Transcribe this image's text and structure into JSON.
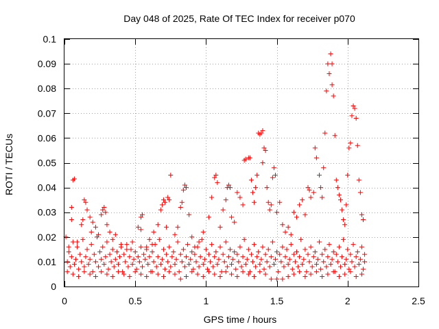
{
  "chart_data": {
    "type": "scatter",
    "title": "Day 048 of 2025, Rate Of TEC Index for receiver p070",
    "xlabel": "GPS time / hours",
    "ylabel": "ROTI / TECUs",
    "xlim": [
      0,
      2.5
    ],
    "ylim": [
      0,
      0.1
    ],
    "xticks": [
      "0",
      "0.5",
      "1",
      "1.5",
      "2",
      "2.5"
    ],
    "yticks": [
      "0",
      "0.01",
      "0.02",
      "0.03",
      "0.04",
      "0.05",
      "0.06",
      "0.07",
      "0.08",
      "0.09",
      "0.1"
    ],
    "grid": true,
    "marker": "+",
    "color": "#ff0000",
    "points": [
      [
        0.02,
        0.01
      ],
      [
        0.03,
        0.014
      ],
      [
        0.04,
        0.008
      ],
      [
        0.05,
        0.012
      ],
      [
        0.06,
        0.018
      ],
      [
        0.07,
        0.009
      ],
      [
        0.08,
        0.011
      ],
      [
        0.09,
        0.016
      ],
      [
        0.1,
        0.007
      ],
      [
        0.11,
        0.013
      ],
      [
        0.12,
        0.01
      ],
      [
        0.13,
        0.019
      ],
      [
        0.14,
        0.008
      ],
      [
        0.15,
        0.012
      ],
      [
        0.16,
        0.015
      ],
      [
        0.17,
        0.009
      ],
      [
        0.18,
        0.011
      ],
      [
        0.19,
        0.017
      ],
      [
        0.2,
        0.006
      ],
      [
        0.21,
        0.013
      ],
      [
        0.22,
        0.01
      ],
      [
        0.23,
        0.02
      ],
      [
        0.24,
        0.008
      ],
      [
        0.25,
        0.014
      ],
      [
        0.26,
        0.011
      ],
      [
        0.27,
        0.016
      ],
      [
        0.28,
        0.009
      ],
      [
        0.29,
        0.012
      ],
      [
        0.3,
        0.018
      ],
      [
        0.31,
        0.007
      ],
      [
        0.32,
        0.013
      ],
      [
        0.33,
        0.01
      ],
      [
        0.34,
        0.015
      ],
      [
        0.35,
        0.008
      ],
      [
        0.36,
        0.011
      ],
      [
        0.37,
        0.014
      ],
      [
        0.38,
        0.009
      ],
      [
        0.39,
        0.012
      ],
      [
        0.4,
        0.016
      ],
      [
        0.41,
        0.006
      ],
      [
        0.42,
        0.013
      ],
      [
        0.43,
        0.01
      ],
      [
        0.44,
        0.017
      ],
      [
        0.45,
        0.008
      ],
      [
        0.46,
        0.012
      ],
      [
        0.47,
        0.015
      ],
      [
        0.48,
        0.009
      ],
      [
        0.49,
        0.011
      ],
      [
        0.5,
        0.014
      ],
      [
        0.51,
        0.007
      ],
      [
        0.52,
        0.012
      ],
      [
        0.53,
        0.01
      ],
      [
        0.54,
        0.016
      ],
      [
        0.55,
        0.008
      ],
      [
        0.56,
        0.013
      ],
      [
        0.57,
        0.011
      ],
      [
        0.58,
        0.015
      ],
      [
        0.59,
        0.009
      ],
      [
        0.6,
        0.012
      ],
      [
        0.61,
        0.006
      ],
      [
        0.62,
        0.014
      ],
      [
        0.63,
        0.01
      ],
      [
        0.64,
        0.017
      ],
      [
        0.65,
        0.008
      ],
      [
        0.66,
        0.012
      ],
      [
        0.67,
        0.019
      ],
      [
        0.68,
        0.009
      ],
      [
        0.69,
        0.011
      ],
      [
        0.7,
        0.015
      ],
      [
        0.71,
        0.007
      ],
      [
        0.72,
        0.013
      ],
      [
        0.73,
        0.01
      ],
      [
        0.74,
        0.016
      ],
      [
        0.75,
        0.008
      ],
      [
        0.76,
        0.012
      ],
      [
        0.77,
        0.014
      ],
      [
        0.78,
        0.009
      ],
      [
        0.79,
        0.011
      ],
      [
        0.8,
        0.018
      ],
      [
        0.81,
        0.006
      ],
      [
        0.82,
        0.013
      ],
      [
        0.83,
        0.01
      ],
      [
        0.84,
        0.015
      ],
      [
        0.85,
        0.008
      ],
      [
        0.86,
        0.012
      ],
      [
        0.87,
        0.017
      ],
      [
        0.88,
        0.009
      ],
      [
        0.89,
        0.011
      ],
      [
        0.9,
        0.014
      ],
      [
        0.91,
        0.007
      ],
      [
        0.92,
        0.013
      ],
      [
        0.93,
        0.01
      ],
      [
        0.94,
        0.016
      ],
      [
        0.95,
        0.008
      ],
      [
        0.96,
        0.012
      ],
      [
        0.97,
        0.019
      ],
      [
        0.98,
        0.009
      ],
      [
        0.99,
        0.011
      ],
      [
        1.0,
        0.015
      ],
      [
        1.01,
        0.007
      ],
      [
        1.02,
        0.013
      ],
      [
        1.03,
        0.01
      ],
      [
        1.04,
        0.017
      ],
      [
        1.05,
        0.008
      ],
      [
        1.06,
        0.012
      ],
      [
        1.07,
        0.014
      ],
      [
        1.08,
        0.009
      ],
      [
        1.09,
        0.011
      ],
      [
        1.1,
        0.016
      ],
      [
        1.11,
        0.006
      ],
      [
        1.12,
        0.013
      ],
      [
        1.13,
        0.01
      ],
      [
        1.14,
        0.018
      ],
      [
        1.15,
        0.008
      ],
      [
        1.16,
        0.012
      ],
      [
        1.17,
        0.015
      ],
      [
        1.18,
        0.009
      ],
      [
        1.19,
        0.011
      ],
      [
        1.2,
        0.014
      ],
      [
        1.21,
        0.007
      ],
      [
        1.22,
        0.013
      ],
      [
        1.23,
        0.01
      ],
      [
        1.24,
        0.016
      ],
      [
        1.25,
        0.008
      ],
      [
        1.26,
        0.012
      ],
      [
        1.27,
        0.019
      ],
      [
        1.28,
        0.009
      ],
      [
        1.29,
        0.011
      ],
      [
        1.3,
        0.015
      ],
      [
        1.31,
        0.006
      ],
      [
        1.32,
        0.013
      ],
      [
        1.33,
        0.01
      ],
      [
        1.34,
        0.017
      ],
      [
        1.35,
        0.008
      ],
      [
        1.36,
        0.012
      ],
      [
        1.37,
        0.014
      ],
      [
        1.38,
        0.009
      ],
      [
        1.39,
        0.011
      ],
      [
        1.4,
        0.016
      ],
      [
        1.41,
        0.007
      ],
      [
        1.42,
        0.013
      ],
      [
        1.43,
        0.01
      ],
      [
        1.44,
        0.015
      ],
      [
        1.45,
        0.008
      ],
      [
        1.46,
        0.012
      ],
      [
        1.47,
        0.018
      ],
      [
        1.48,
        0.009
      ],
      [
        1.49,
        0.011
      ],
      [
        1.5,
        0.014
      ],
      [
        1.51,
        0.006
      ],
      [
        1.52,
        0.013
      ],
      [
        1.53,
        0.01
      ],
      [
        1.54,
        0.016
      ],
      [
        1.55,
        0.008
      ],
      [
        1.56,
        0.012
      ],
      [
        1.57,
        0.015
      ],
      [
        1.58,
        0.009
      ],
      [
        1.59,
        0.011
      ],
      [
        1.6,
        0.017
      ],
      [
        1.61,
        0.007
      ],
      [
        1.62,
        0.013
      ],
      [
        1.63,
        0.01
      ],
      [
        1.64,
        0.014
      ],
      [
        1.65,
        0.008
      ],
      [
        1.66,
        0.012
      ],
      [
        1.67,
        0.019
      ],
      [
        1.68,
        0.009
      ],
      [
        1.69,
        0.011
      ],
      [
        1.7,
        0.015
      ],
      [
        1.71,
        0.006
      ],
      [
        1.72,
        0.013
      ],
      [
        1.73,
        0.01
      ],
      [
        1.74,
        0.016
      ],
      [
        1.75,
        0.008
      ],
      [
        1.76,
        0.012
      ],
      [
        1.77,
        0.014
      ],
      [
        1.78,
        0.009
      ],
      [
        1.79,
        0.011
      ],
      [
        1.8,
        0.018
      ],
      [
        1.81,
        0.007
      ],
      [
        1.82,
        0.013
      ],
      [
        1.83,
        0.01
      ],
      [
        1.84,
        0.015
      ],
      [
        1.85,
        0.008
      ],
      [
        1.86,
        0.012
      ],
      [
        1.87,
        0.017
      ],
      [
        1.88,
        0.009
      ],
      [
        1.89,
        0.011
      ],
      [
        1.9,
        0.014
      ],
      [
        1.91,
        0.006
      ],
      [
        1.92,
        0.013
      ],
      [
        1.93,
        0.01
      ],
      [
        1.94,
        0.016
      ],
      [
        1.95,
        0.008
      ],
      [
        1.96,
        0.012
      ],
      [
        1.97,
        0.019
      ],
      [
        1.98,
        0.009
      ],
      [
        1.99,
        0.011
      ],
      [
        2.0,
        0.015
      ],
      [
        2.01,
        0.007
      ],
      [
        2.02,
        0.013
      ],
      [
        2.03,
        0.01
      ],
      [
        2.04,
        0.017
      ],
      [
        2.05,
        0.008
      ],
      [
        2.06,
        0.012
      ],
      [
        2.07,
        0.014
      ],
      [
        2.08,
        0.009
      ],
      [
        2.09,
        0.011
      ],
      [
        2.1,
        0.016
      ],
      [
        2.11,
        0.007
      ],
      [
        2.12,
        0.013
      ],
      [
        2.12,
        0.01
      ],
      [
        0.02,
        0.006
      ],
      [
        0.06,
        0.005
      ],
      [
        0.1,
        0.004
      ],
      [
        0.14,
        0.006
      ],
      [
        0.18,
        0.005
      ],
      [
        0.22,
        0.004
      ],
      [
        0.26,
        0.006
      ],
      [
        0.3,
        0.005
      ],
      [
        0.34,
        0.004
      ],
      [
        0.38,
        0.006
      ],
      [
        0.42,
        0.005
      ],
      [
        0.46,
        0.004
      ],
      [
        0.5,
        0.006
      ],
      [
        0.54,
        0.005
      ],
      [
        0.58,
        0.004
      ],
      [
        0.62,
        0.006
      ],
      [
        0.66,
        0.005
      ],
      [
        0.7,
        0.004
      ],
      [
        0.74,
        0.006
      ],
      [
        0.78,
        0.005
      ],
      [
        0.82,
        0.003
      ],
      [
        0.86,
        0.004
      ],
      [
        0.9,
        0.006
      ],
      [
        0.94,
        0.005
      ],
      [
        0.98,
        0.004
      ],
      [
        1.02,
        0.006
      ],
      [
        1.06,
        0.005
      ],
      [
        1.1,
        0.004
      ],
      [
        1.14,
        0.006
      ],
      [
        1.18,
        0.005
      ],
      [
        1.22,
        0.004
      ],
      [
        1.26,
        0.006
      ],
      [
        1.3,
        0.005
      ],
      [
        1.34,
        0.004
      ],
      [
        1.38,
        0.006
      ],
      [
        1.42,
        0.005
      ],
      [
        1.46,
        0.003
      ],
      [
        1.5,
        0.003
      ],
      [
        1.54,
        0.003
      ],
      [
        1.58,
        0.004
      ],
      [
        1.62,
        0.005
      ],
      [
        1.66,
        0.006
      ],
      [
        1.7,
        0.004
      ],
      [
        1.74,
        0.005
      ],
      [
        1.78,
        0.006
      ],
      [
        1.82,
        0.004
      ],
      [
        1.86,
        0.005
      ],
      [
        1.9,
        0.006
      ],
      [
        1.94,
        0.004
      ],
      [
        1.98,
        0.005
      ],
      [
        2.02,
        0.006
      ],
      [
        2.06,
        0.004
      ],
      [
        2.1,
        0.005
      ],
      [
        0.01,
        0.02
      ],
      [
        0.03,
        0.016
      ],
      [
        0.05,
        0.032
      ],
      [
        0.05,
        0.027
      ],
      [
        0.06,
        0.043
      ],
      [
        0.07,
        0.0435
      ],
      [
        0.09,
        0.018
      ],
      [
        0.12,
        0.025
      ],
      [
        0.13,
        0.027
      ],
      [
        0.14,
        0.035
      ],
      [
        0.15,
        0.034
      ],
      [
        0.16,
        0.031
      ],
      [
        0.18,
        0.028
      ],
      [
        0.19,
        0.022
      ],
      [
        0.2,
        0.026
      ],
      [
        0.22,
        0.024
      ],
      [
        0.24,
        0.021
      ],
      [
        0.26,
        0.029
      ],
      [
        0.27,
        0.031
      ],
      [
        0.28,
        0.032
      ],
      [
        0.29,
        0.03
      ],
      [
        0.3,
        0.025
      ],
      [
        0.32,
        0.022
      ],
      [
        0.34,
        0.019
      ],
      [
        0.36,
        0.021
      ],
      [
        0.4,
        0.017
      ],
      [
        0.44,
        0.015
      ],
      [
        0.48,
        0.018
      ],
      [
        0.52,
        0.024
      ],
      [
        0.54,
        0.023
      ],
      [
        0.54,
        0.028
      ],
      [
        0.55,
        0.029
      ],
      [
        0.58,
        0.016
      ],
      [
        0.6,
        0.019
      ],
      [
        0.62,
        0.017
      ],
      [
        0.63,
        0.022
      ],
      [
        0.66,
        0.025
      ],
      [
        0.68,
        0.031
      ],
      [
        0.69,
        0.033
      ],
      [
        0.7,
        0.035
      ],
      [
        0.71,
        0.034
      ],
      [
        0.72,
        0.024
      ],
      [
        0.73,
        0.036
      ],
      [
        0.74,
        0.035
      ],
      [
        0.75,
        0.045
      ],
      [
        0.78,
        0.021
      ],
      [
        0.8,
        0.024
      ],
      [
        0.82,
        0.032
      ],
      [
        0.83,
        0.034
      ],
      [
        0.84,
        0.039
      ],
      [
        0.85,
        0.041
      ],
      [
        0.86,
        0.04
      ],
      [
        0.88,
        0.029
      ],
      [
        0.9,
        0.02
      ],
      [
        0.92,
        0.016
      ],
      [
        0.95,
        0.018
      ],
      [
        0.98,
        0.022
      ],
      [
        1.02,
        0.028
      ],
      [
        1.04,
        0.036
      ],
      [
        1.06,
        0.044
      ],
      [
        1.07,
        0.045
      ],
      [
        1.08,
        0.042
      ],
      [
        1.1,
        0.024
      ],
      [
        1.12,
        0.031
      ],
      [
        1.14,
        0.035
      ],
      [
        1.15,
        0.04
      ],
      [
        1.16,
        0.041
      ],
      [
        1.17,
        0.04
      ],
      [
        1.18,
        0.028
      ],
      [
        1.2,
        0.026
      ],
      [
        1.22,
        0.038
      ],
      [
        1.24,
        0.036
      ],
      [
        1.26,
        0.033
      ],
      [
        1.27,
        0.051
      ],
      [
        1.28,
        0.0515
      ],
      [
        1.3,
        0.052
      ],
      [
        1.31,
        0.052
      ],
      [
        1.32,
        0.043
      ],
      [
        1.33,
        0.038
      ],
      [
        1.34,
        0.034
      ],
      [
        1.35,
        0.04
      ],
      [
        1.36,
        0.045
      ],
      [
        1.37,
        0.062
      ],
      [
        1.38,
        0.0615
      ],
      [
        1.39,
        0.062
      ],
      [
        1.4,
        0.063
      ],
      [
        1.41,
        0.056
      ],
      [
        1.42,
        0.055
      ],
      [
        1.4,
        0.05
      ],
      [
        1.43,
        0.04
      ],
      [
        1.44,
        0.034
      ],
      [
        1.45,
        0.031
      ],
      [
        1.46,
        0.033
      ],
      [
        1.47,
        0.044
      ],
      [
        1.48,
        0.048
      ],
      [
        1.49,
        0.045
      ],
      [
        1.5,
        0.03
      ],
      [
        1.52,
        0.034
      ],
      [
        1.54,
        0.025
      ],
      [
        1.56,
        0.022
      ],
      [
        1.58,
        0.024
      ],
      [
        1.6,
        0.021
      ],
      [
        1.62,
        0.03
      ],
      [
        1.64,
        0.028
      ],
      [
        1.66,
        0.033
      ],
      [
        1.68,
        0.035
      ],
      [
        1.7,
        0.029
      ],
      [
        1.72,
        0.04
      ],
      [
        1.73,
        0.039
      ],
      [
        1.74,
        0.036
      ],
      [
        1.76,
        0.038
      ],
      [
        1.77,
        0.056
      ],
      [
        1.78,
        0.052
      ],
      [
        1.8,
        0.045
      ],
      [
        1.81,
        0.04
      ],
      [
        1.82,
        0.036
      ],
      [
        1.83,
        0.048
      ],
      [
        1.84,
        0.062
      ],
      [
        1.85,
        0.079
      ],
      [
        1.86,
        0.09
      ],
      [
        1.87,
        0.086
      ],
      [
        1.88,
        0.094
      ],
      [
        1.89,
        0.09
      ],
      [
        1.89,
        0.0815
      ],
      [
        1.9,
        0.077
      ],
      [
        1.91,
        0.061
      ],
      [
        1.92,
        0.043
      ],
      [
        1.93,
        0.04
      ],
      [
        1.94,
        0.037
      ],
      [
        1.95,
        0.035
      ],
      [
        1.96,
        0.031
      ],
      [
        1.97,
        0.027
      ],
      [
        1.98,
        0.025
      ],
      [
        1.99,
        0.033
      ],
      [
        2.0,
        0.045
      ],
      [
        2.01,
        0.056
      ],
      [
        2.02,
        0.058
      ],
      [
        2.03,
        0.069
      ],
      [
        2.04,
        0.073
      ],
      [
        2.05,
        0.072
      ],
      [
        2.06,
        0.068
      ],
      [
        2.07,
        0.057
      ],
      [
        2.08,
        0.043
      ],
      [
        2.09,
        0.038
      ],
      [
        2.1,
        0.029
      ],
      [
        2.11,
        0.027
      ]
    ]
  }
}
